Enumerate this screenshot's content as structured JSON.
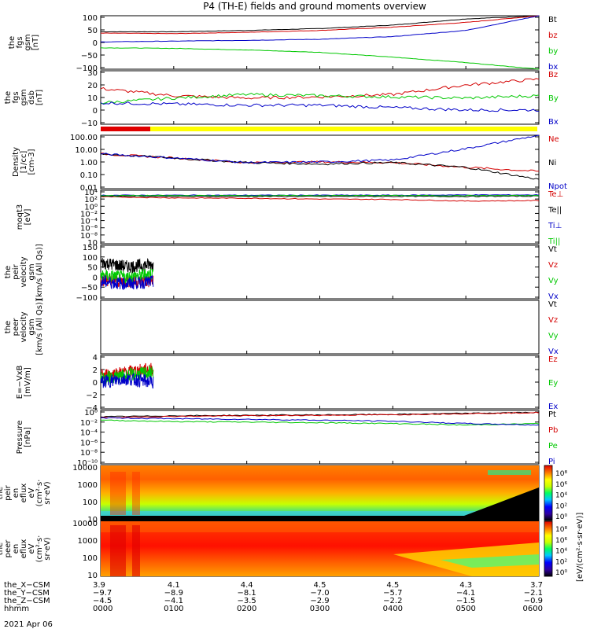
{
  "title": "P4 (TH-E) fields and ground moments overview",
  "colors": {
    "black": "#000000",
    "red": "#d40000",
    "green": "#00c800",
    "blue": "#0000c8",
    "yellow": "#ffff00",
    "redbar": "#e00000"
  },
  "panels": [
    {
      "ylabel": [
        "the",
        "fgs",
        "gsm",
        "[nT]"
      ],
      "yticks": [
        "100",
        "50",
        "0",
        "−50",
        "−100"
      ],
      "legend": [
        {
          "t": "Bt",
          "c": "black"
        },
        {
          "t": "bz",
          "c": "red"
        },
        {
          "t": "by",
          "c": "green"
        },
        {
          "t": "bx",
          "c": "blue"
        }
      ]
    },
    {
      "ylabel": [
        "the",
        "fgs",
        "gsm",
        "dsb",
        "[nT]"
      ],
      "yticks": [
        "30",
        "20",
        "10",
        "0",
        "−10"
      ],
      "legend": [
        {
          "t": "Bz",
          "c": "red"
        },
        {
          "t": "By",
          "c": "green"
        },
        {
          "t": "Bx",
          "c": "blue"
        }
      ]
    },
    {
      "ylabel": [
        "Density",
        "[1/cc]",
        "[cm-3]"
      ],
      "yticks": [
        "100.00",
        "10.00",
        "1.00",
        "0.10",
        "0.01"
      ],
      "legend": [
        {
          "t": "Ne",
          "c": "red"
        },
        {
          "t": "Ni",
          "c": "black"
        },
        {
          "t": "Npot",
          "c": "blue"
        }
      ]
    },
    {
      "ylabel": [
        "moqt3",
        "[eV]"
      ],
      "yticks": [
        "10⁴",
        "10²",
        "10⁰",
        "10⁻²",
        "10⁻⁴",
        "10⁻⁶",
        "10⁻⁸",
        "10"
      ],
      "legend": [
        {
          "t": "Te⊥",
          "c": "red"
        },
        {
          "t": "Te||",
          "c": "black"
        },
        {
          "t": "Ti⊥",
          "c": "blue"
        },
        {
          "t": "Ti||",
          "c": "green"
        }
      ]
    },
    {
      "ylabel": [
        "the",
        "peir",
        "velocity",
        "gsm",
        "[km/s (All Qs)]"
      ],
      "yticks": [
        "150",
        "100",
        "50",
        "0",
        "−50",
        "−100"
      ],
      "legend": [
        {
          "t": "Vt",
          "c": "black"
        },
        {
          "t": "Vz",
          "c": "red"
        },
        {
          "t": "Vy",
          "c": "green"
        },
        {
          "t": "Vx",
          "c": "blue"
        }
      ]
    },
    {
      "ylabel": [
        "the",
        "peer",
        "velocity",
        "gsm",
        "[km/s (All Qs)]"
      ],
      "yticks": [],
      "legend": [
        {
          "t": "Vt",
          "c": "black"
        },
        {
          "t": "Vz",
          "c": "red"
        },
        {
          "t": "Vy",
          "c": "green"
        },
        {
          "t": "Vx",
          "c": "blue"
        }
      ]
    },
    {
      "ylabel": [
        "E=−VxB",
        "[mV/m]"
      ],
      "yticks": [
        "4",
        "2",
        "0",
        "−2",
        "−4"
      ],
      "legend": [
        {
          "t": "Ez",
          "c": "red"
        },
        {
          "t": "Ey",
          "c": "green"
        },
        {
          "t": "Ex",
          "c": "blue"
        }
      ]
    },
    {
      "ylabel": [
        "Pressure",
        "[nPa]"
      ],
      "yticks": [
        "10⁰",
        "10⁻²",
        "10⁻⁴",
        "10⁻⁶",
        "10⁻⁸",
        "10⁻¹⁰"
      ],
      "legend": [
        {
          "t": "Pt",
          "c": "black"
        },
        {
          "t": "Pb",
          "c": "red"
        },
        {
          "t": "Pe",
          "c": "green"
        },
        {
          "t": "Pi",
          "c": "blue"
        }
      ]
    },
    {
      "ylabel": [
        "the",
        "peir",
        "en",
        "eflux",
        "eV",
        "(cm²·s·",
        "sr·eV)"
      ],
      "yticks": [
        "10000",
        "1000",
        "100",
        "10"
      ],
      "legend": []
    },
    {
      "ylabel": [
        "the",
        "peer",
        "en",
        "eflux",
        "eV",
        "(cm²·s·",
        "sr·eV)"
      ],
      "yticks": [
        "10000",
        "1000",
        "100",
        "10"
      ],
      "legend": []
    }
  ],
  "colorbar": {
    "ticks": [
      "10⁸",
      "10⁶",
      "10⁴",
      "10²",
      "10⁰"
    ],
    "label": "[eV/(cm²·s·sr·eV)]"
  },
  "colorbar2": {
    "ticks": [
      "10⁸",
      "10⁶",
      "10⁴",
      "10²",
      "10⁰"
    ]
  },
  "xaxis": {
    "rows": [
      {
        "label": "the_X−CSM",
        "values": [
          "3.9",
          "4.1",
          "4.4",
          "4.5",
          "4.5",
          "4.3",
          "3.7"
        ]
      },
      {
        "label": "the_Y−CSM",
        "values": [
          "−9.7",
          "−8.9",
          "−8.1",
          "−7.0",
          "−5.7",
          "−4.1",
          "−2.1"
        ]
      },
      {
        "label": "the_Z−CSM",
        "values": [
          "−4.5",
          "−4.1",
          "−3.5",
          "−2.9",
          "−2.2",
          "−1.5",
          "−0.9"
        ]
      },
      {
        "label": "hhmm",
        "values": [
          "0000",
          "0100",
          "0200",
          "0300",
          "0400",
          "0500",
          "0600"
        ]
      }
    ],
    "date": "2021 Apr 06"
  },
  "chart_data": [
    {
      "type": "line",
      "title": "P4 (TH-E) fields and ground moments overview",
      "ylabel": "the fgs gsm [nT]",
      "ylim": [
        -100,
        100
      ],
      "x": [
        "0000",
        "0100",
        "0200",
        "0300",
        "0400",
        "0500",
        "0600"
      ],
      "series": [
        {
          "name": "Bt",
          "values": [
            40,
            40,
            45,
            52,
            65,
            88,
            100
          ]
        },
        {
          "name": "bz",
          "values": [
            35,
            33,
            38,
            45,
            57,
            75,
            100
          ]
        },
        {
          "name": "by",
          "values": [
            -20,
            -22,
            -28,
            -37,
            -55,
            -75,
            -100
          ]
        },
        {
          "name": "bx",
          "values": [
            2,
            5,
            8,
            12,
            22,
            45,
            100
          ]
        }
      ]
    },
    {
      "type": "line",
      "ylabel": "the fgs gsm dsb [nT]",
      "ylim": [
        -10,
        30
      ],
      "x": [
        "0000",
        "0100",
        "0200",
        "0300",
        "0400",
        "0500",
        "0600"
      ],
      "series": [
        {
          "name": "Bz",
          "values": [
            15,
            9,
            7,
            8,
            10,
            18,
            23
          ]
        },
        {
          "name": "By",
          "values": [
            3,
            7,
            10,
            9,
            8,
            7,
            9
          ]
        },
        {
          "name": "Bx",
          "values": [
            3,
            2,
            1,
            1,
            -1,
            -3,
            -3
          ]
        }
      ]
    },
    {
      "type": "line",
      "ylabel": "Density [1/cc] [cm-3]",
      "ylim": [
        0.01,
        100
      ],
      "x": [
        "0000",
        "0100",
        "0200",
        "0300",
        "0400",
        "0500",
        "0600"
      ],
      "series": [
        {
          "name": "Ne",
          "values": [
            4,
            2,
            0.9,
            1,
            0.9,
            0.4,
            0.2
          ]
        },
        {
          "name": "Ni",
          "values": [
            4,
            2,
            0.9,
            0.7,
            0.9,
            0.4,
            0.05
          ]
        },
        {
          "name": "Npot",
          "values": [
            4,
            2,
            0.9,
            1,
            1.4,
            10,
            100
          ]
        }
      ]
    },
    {
      "type": "line",
      "ylabel": "moqt3 [eV]",
      "x": [
        "0000",
        "0100",
        "0200",
        "0300",
        "0400",
        "0500",
        "0600"
      ],
      "series": [
        {
          "name": "Te⊥",
          "values": [
            2000,
            1000,
            800,
            500,
            400,
            150,
            200
          ]
        },
        {
          "name": "Te||",
          "values": [
            3000,
            2500,
            2500,
            2500,
            2500,
            2500,
            3000
          ]
        },
        {
          "name": "Ti⊥",
          "values": [
            5000,
            5000,
            5000,
            5000,
            5000,
            6000,
            6000
          ]
        },
        {
          "name": "Ti||",
          "values": [
            4000,
            4000,
            4000,
            4000,
            4000,
            4000,
            4000
          ]
        }
      ]
    },
    {
      "type": "line",
      "ylabel": "the peir velocity gsm [km/s (All Qs)]",
      "ylim": [
        -100,
        150
      ],
      "x": [
        "0000",
        "0030",
        "0100"
      ],
      "series": [
        {
          "name": "Vt",
          "values": [
            70,
            50,
            60
          ]
        },
        {
          "name": "Vz",
          "values": [
            -10,
            -20,
            -20
          ]
        },
        {
          "name": "Vy",
          "values": [
            10,
            0,
            20
          ]
        },
        {
          "name": "Vx",
          "values": [
            -20,
            -30,
            -20
          ]
        }
      ]
    },
    {
      "type": "line",
      "ylabel": "E=−VxB [mV/m]",
      "ylim": [
        -4,
        4
      ],
      "x": [
        "0000",
        "0030",
        "0100"
      ],
      "series": [
        {
          "name": "Ez",
          "values": [
            1,
            1.5,
            2
          ]
        },
        {
          "name": "Ey",
          "values": [
            0.5,
            1,
            1.5
          ]
        },
        {
          "name": "Ex",
          "values": [
            0,
            0.5,
            0
          ]
        }
      ]
    },
    {
      "type": "line",
      "ylabel": "Pressure [nPa]",
      "ylim": [
        1e-10,
        10
      ],
      "x": [
        "0000",
        "0100",
        "0200",
        "0300",
        "0400",
        "0500",
        "0600"
      ],
      "series": [
        {
          "name": "Pt",
          "values": [
            0.5,
            0.8,
            1,
            1.2,
            1.5,
            2.5,
            4
          ]
        },
        {
          "name": "Pb",
          "values": [
            0.3,
            0.6,
            0.8,
            1,
            1.3,
            2.2,
            3.5
          ]
        },
        {
          "name": "Pe",
          "values": [
            0.1,
            0.05,
            0.04,
            0.03,
            0.02,
            0.01,
            0.02
          ]
        },
        {
          "name": "Pi",
          "values": [
            0.3,
            0.2,
            0.15,
            0.1,
            0.06,
            0.02,
            0.01
          ]
        }
      ]
    },
    {
      "type": "heatmap",
      "ylabel": "the peir en eflux",
      "ylim": [
        5,
        20000
      ],
      "x": [
        "0000",
        "0600"
      ]
    },
    {
      "type": "heatmap",
      "ylabel": "the peer en eflux",
      "ylim": [
        5,
        20000
      ],
      "x": [
        "0000",
        "0600"
      ]
    }
  ]
}
